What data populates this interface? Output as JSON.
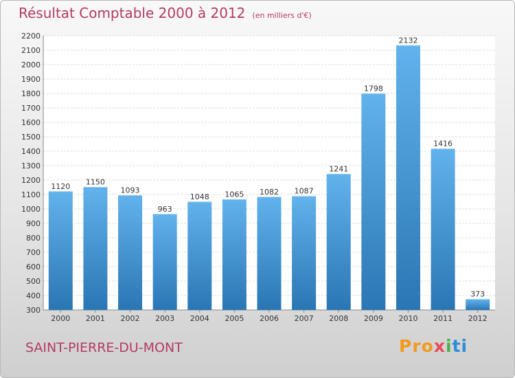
{
  "header": {
    "title": "Résultat Comptable 2000 à 2012",
    "subtitle": "(en milliers d'€)"
  },
  "footer": {
    "commune": "SAINT-PIERRE-DU-MONT",
    "logo": {
      "p1": "Pro",
      "p2": "x",
      "p3": "i",
      "p4": "ti"
    }
  },
  "colors": {
    "bar_top": "#62b2ec",
    "bar_bottom": "#2a76b4",
    "title": "#b43a63"
  },
  "chart_data": {
    "type": "bar",
    "categories": [
      "2000",
      "2001",
      "2002",
      "2003",
      "2004",
      "2005",
      "2006",
      "2007",
      "2008",
      "2009",
      "2010",
      "2011",
      "2012"
    ],
    "values": [
      1120,
      1150,
      1093,
      963,
      1048,
      1065,
      1082,
      1087,
      1241,
      1798,
      2132,
      1416,
      373
    ],
    "data_labels": [
      "1120",
      "1150",
      "1093",
      "963",
      "1048",
      "1065",
      "1082",
      "1087",
      "1241",
      "1798",
      "2132",
      "1416",
      "373"
    ],
    "ylim": [
      300,
      2200
    ],
    "yticks": [
      300,
      400,
      500,
      600,
      700,
      800,
      900,
      1000,
      1100,
      1200,
      1300,
      1400,
      1500,
      1600,
      1700,
      1800,
      1900,
      2000,
      2100,
      2200
    ],
    "grid": true,
    "legend": "none"
  }
}
